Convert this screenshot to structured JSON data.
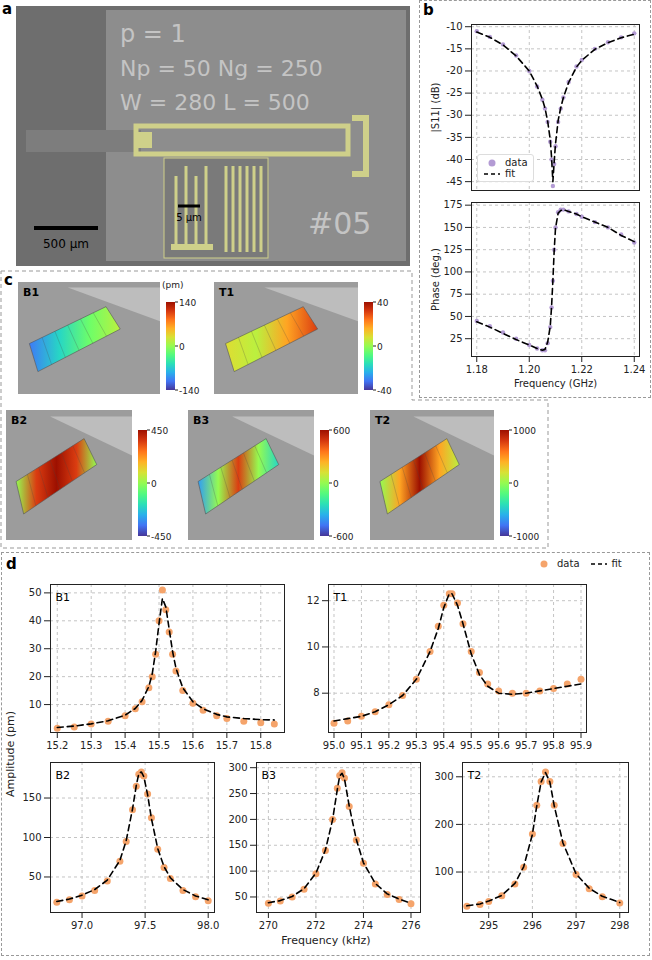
{
  "panel_a": {
    "letter": "a",
    "chip_labels": [
      "p = 1",
      "Np = 50 Ng = 250",
      "W = 280 L = 500",
      "#05"
    ],
    "scale_bar": "500 µm",
    "inset_scale_bar": "5 µm"
  },
  "panel_b": {
    "letter": "b"
  },
  "panel_c": {
    "letter": "c",
    "unit": "(pm)",
    "modes": [
      {
        "name": "B1",
        "colorbar": {
          "range": [
            -140,
            140
          ],
          "ticks": [
            -140,
            0,
            140
          ]
        }
      },
      {
        "name": "T1",
        "colorbar": {
          "range": [
            -40,
            40
          ],
          "ticks": [
            -40,
            0,
            40
          ]
        }
      },
      {
        "name": "B2",
        "colorbar": {
          "range": [
            -450,
            450
          ],
          "ticks": [
            -450,
            0,
            450
          ]
        }
      },
      {
        "name": "B3",
        "colorbar": {
          "range": [
            -600,
            600
          ],
          "ticks": [
            -600,
            0,
            600
          ]
        }
      },
      {
        "name": "T2",
        "colorbar": {
          "range": [
            -1000,
            1000
          ],
          "ticks": [
            -1000,
            0,
            1000
          ]
        }
      }
    ]
  },
  "panel_d": {
    "letter": "d",
    "xlabel": "Frequency (kHz)",
    "ylabel": "Amplitude (pm)",
    "legend": "top-right"
  },
  "chart_data": [
    {
      "type": "line",
      "ylabel": "|S11| (dB)",
      "grid": true,
      "tick_labels": "y",
      "legend": "bottom-left",
      "x": [
        1.18,
        1.185,
        1.19,
        1.195,
        1.2,
        1.203,
        1.205,
        1.206,
        1.207,
        1.208,
        1.2085,
        1.209,
        1.2095,
        1.21,
        1.211,
        1.212,
        1.213,
        1.215,
        1.218,
        1.22,
        1.225,
        1.23,
        1.235,
        1.24
      ],
      "xlim": [
        1.178,
        1.242
      ],
      "xticks": [
        1.18,
        {
          "value": 1.2,
          "label": "1.20"
        },
        1.22,
        1.24
      ],
      "ylim": [
        -47,
        -9.5
      ],
      "yticks": [
        -45,
        -40,
        -35,
        -30,
        -25,
        -20,
        -15,
        -10
      ],
      "series": [
        {
          "name": "data",
          "type": "scatter",
          "marker": "circle",
          "color": "#b39bd4",
          "values": [
            -11,
            -12.3,
            -14,
            -16.5,
            -20,
            -23.5,
            -26.5,
            -28.5,
            -31.5,
            -36,
            -40,
            -46,
            -41,
            -37,
            -31.5,
            -28.5,
            -26,
            -22.5,
            -19,
            -17.5,
            -15,
            -13.5,
            -12.4,
            -11.5
          ]
        },
        {
          "name": "fit",
          "type": "line",
          "line_style": "dashed",
          "color": "#000000",
          "values": [
            -11.2,
            -12.4,
            -14.1,
            -16.6,
            -20,
            -23.4,
            -26.4,
            -28.4,
            -31.3,
            -35.5,
            -39.5,
            -45,
            -40.5,
            -36.5,
            -31.2,
            -28.3,
            -26,
            -22.6,
            -19.1,
            -17.6,
            -15.1,
            -13.6,
            -12.5,
            -11.7
          ]
        }
      ]
    },
    {
      "type": "line",
      "xlabel": "Frequency (GHz)",
      "ylabel": "Phase (deg.)",
      "grid": true,
      "x": [
        1.18,
        1.185,
        1.19,
        1.195,
        1.2,
        1.203,
        1.205,
        1.206,
        1.207,
        1.208,
        1.2085,
        1.209,
        1.2095,
        1.21,
        1.211,
        1.212,
        1.213,
        1.215,
        1.218,
        1.22,
        1.225,
        1.23,
        1.235,
        1.24
      ],
      "xlim": [
        1.178,
        1.242
      ],
      "xticks": [
        1.18,
        {
          "value": 1.2,
          "label": "1.20"
        },
        1.22,
        1.24
      ],
      "ylim": [
        5,
        178
      ],
      "yticks": [
        25,
        50,
        75,
        100,
        125,
        150,
        175
      ],
      "series": [
        {
          "name": "data",
          "type": "scatter",
          "marker": "circle",
          "color": "#b39bd4",
          "values": [
            45,
            39,
            32,
            25,
            18,
            14,
            12,
            12,
            20,
            38,
            60,
            90,
            125,
            150,
            167,
            170,
            170,
            168,
            165,
            162,
            156,
            150,
            142,
            133
          ]
        },
        {
          "name": "fit",
          "type": "line",
          "line_style": "dashed",
          "color": "#000000",
          "values": [
            44,
            38,
            31,
            24,
            18,
            14,
            12,
            13,
            21,
            39,
            61,
            90,
            124,
            149,
            166,
            169,
            170,
            168,
            165,
            162,
            156,
            150,
            141,
            134
          ]
        }
      ]
    },
    {
      "type": "line",
      "title": "B1",
      "grid": true,
      "x": [
        15.2,
        15.25,
        15.3,
        15.35,
        15.4,
        15.43,
        15.45,
        15.47,
        15.48,
        15.49,
        15.5,
        15.51,
        15.52,
        15.53,
        15.54,
        15.55,
        15.57,
        15.6,
        15.63,
        15.67,
        15.7,
        15.75,
        15.8,
        15.84
      ],
      "xlim": [
        15.18,
        15.87
      ],
      "xticks": [
        15.2,
        15.3,
        15.4,
        15.5,
        15.6,
        15.7,
        15.8
      ],
      "ylim": [
        0,
        53
      ],
      "yticks": [
        10,
        20,
        30,
        40,
        50
      ],
      "series": [
        {
          "name": "data",
          "type": "scatter",
          "marker": "circle",
          "color": "#f5a46b",
          "values": [
            1.5,
            2,
            3,
            4,
            6,
            8.5,
            11,
            16,
            20,
            28,
            40,
            51,
            44,
            36,
            28,
            22,
            15,
            10.5,
            8,
            6,
            5,
            4,
            3.5,
            3
          ]
        },
        {
          "name": "fit",
          "type": "line",
          "line_style": "dashed",
          "color": "#000000",
          "values": [
            1.8,
            2.3,
            3.1,
            4.2,
            6.2,
            8.6,
            11.5,
            16.5,
            21,
            29,
            39,
            48,
            45,
            37,
            29,
            23,
            16,
            11,
            8.5,
            6.5,
            5.6,
            5,
            4.6,
            4.5
          ]
        }
      ]
    },
    {
      "type": "line",
      "title": "T1",
      "grid": true,
      "x": [
        95.0,
        95.05,
        95.1,
        95.15,
        95.2,
        95.25,
        95.3,
        95.35,
        95.38,
        95.4,
        95.42,
        95.43,
        95.45,
        95.47,
        95.5,
        95.53,
        95.56,
        95.6,
        95.65,
        95.7,
        95.75,
        95.8,
        95.85,
        95.9
      ],
      "xlim": [
        94.98,
        95.92
      ],
      "xticks": [
        {
          "value": 95,
          "label": "95.0"
        },
        95.1,
        95.2,
        95.3,
        95.4,
        95.5,
        95.6,
        95.7,
        95.8,
        95.9
      ],
      "ylim": [
        6.3,
        12.7
      ],
      "yticks": [
        8,
        10,
        12
      ],
      "series": [
        {
          "name": "data",
          "type": "scatter",
          "marker": "circle",
          "color": "#f5a46b",
          "values": [
            6.7,
            6.8,
            7.0,
            7.2,
            7.5,
            7.9,
            8.6,
            9.8,
            10.9,
            11.8,
            12.3,
            12.3,
            11.9,
            11.0,
            9.8,
            8.9,
            8.4,
            8.1,
            8.0,
            8.0,
            8.1,
            8.2,
            8.4,
            8.6
          ]
        },
        {
          "name": "fit",
          "type": "line",
          "line_style": "dashed",
          "color": "#000000",
          "values": [
            6.8,
            6.9,
            7.0,
            7.2,
            7.5,
            7.9,
            8.6,
            9.8,
            10.8,
            11.7,
            12.3,
            12.3,
            11.8,
            11.0,
            9.7,
            8.8,
            8.3,
            8.0,
            7.95,
            8.0,
            8.1,
            8.2,
            8.3,
            8.4
          ]
        }
      ]
    },
    {
      "type": "line",
      "title": "B2",
      "grid": true,
      "x": [
        96.8,
        96.9,
        97.0,
        97.1,
        97.2,
        97.3,
        97.35,
        97.4,
        97.43,
        97.45,
        97.47,
        97.49,
        97.52,
        97.55,
        97.6,
        97.65,
        97.7,
        97.8,
        97.9,
        98.0
      ],
      "xlim": [
        96.75,
        98.05
      ],
      "xticks": [
        {
          "value": 97,
          "label": "97.0"
        },
        97.5,
        {
          "value": 98,
          "label": "98.0"
        }
      ],
      "ylim": [
        5,
        195
      ],
      "yticks": [
        50,
        100,
        150
      ],
      "series": [
        {
          "name": "data",
          "type": "scatter",
          "marker": "circle",
          "color": "#f5a46b",
          "values": [
            18,
            21,
            26,
            33,
            45,
            70,
            95,
            135,
            165,
            180,
            183,
            178,
            155,
            125,
            85,
            62,
            48,
            33,
            25,
            20
          ]
        },
        {
          "name": "fit",
          "type": "line",
          "line_style": "dashed",
          "color": "#000000",
          "values": [
            19,
            22,
            27,
            34,
            46,
            71,
            96,
            136,
            166,
            181,
            183,
            177,
            154,
            124,
            86,
            63,
            49,
            34,
            26,
            21
          ]
        }
      ]
    },
    {
      "type": "line",
      "title": "B3",
      "grid": true,
      "x": [
        270,
        270.5,
        271,
        271.5,
        272,
        272.4,
        272.7,
        272.9,
        273.0,
        273.1,
        273.2,
        273.4,
        273.7,
        274,
        274.5,
        275,
        275.5,
        276
      ],
      "xlim": [
        269.5,
        276.4
      ],
      "xticks": [
        270,
        272,
        274,
        276
      ],
      "ylim": [
        20,
        310
      ],
      "yticks": [
        50,
        100,
        150,
        200,
        250,
        300
      ],
      "series": [
        {
          "name": "data",
          "type": "scatter",
          "marker": "circle",
          "color": "#f5a46b",
          "values": [
            38,
            42,
            50,
            65,
            95,
            140,
            200,
            260,
            285,
            290,
            280,
            225,
            160,
            115,
            75,
            55,
            45,
            37
          ]
        },
        {
          "name": "fit",
          "type": "line",
          "line_style": "dashed",
          "color": "#000000",
          "values": [
            39,
            43,
            51,
            66,
            96,
            141,
            199,
            258,
            284,
            289,
            279,
            226,
            161,
            116,
            76,
            56,
            46,
            38
          ]
        }
      ]
    },
    {
      "type": "line",
      "title": "T2",
      "grid": true,
      "x": [
        294.5,
        294.8,
        295,
        295.3,
        295.6,
        295.8,
        296,
        296.1,
        296.2,
        296.3,
        296.4,
        296.5,
        296.7,
        297,
        297.3,
        297.6,
        298
      ],
      "xlim": [
        294.4,
        298.2
      ],
      "xticks": [
        295,
        296,
        297,
        298
      ],
      "ylim": [
        15,
        330
      ],
      "yticks": [
        100,
        200,
        300
      ],
      "series": [
        {
          "name": "data",
          "type": "scatter",
          "marker": "circle",
          "color": "#f5a46b",
          "values": [
            28,
            32,
            38,
            50,
            75,
            110,
            180,
            240,
            290,
            310,
            290,
            240,
            160,
            95,
            65,
            48,
            35
          ]
        },
        {
          "name": "fit",
          "type": "line",
          "line_style": "dashed",
          "color": "#000000",
          "values": [
            29,
            33,
            39,
            51,
            76,
            111,
            179,
            239,
            289,
            309,
            289,
            239,
            161,
            96,
            66,
            49,
            36
          ]
        }
      ]
    }
  ]
}
